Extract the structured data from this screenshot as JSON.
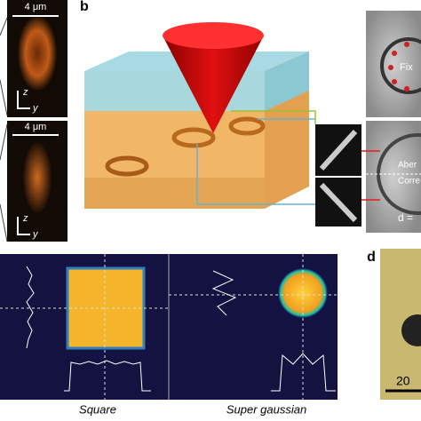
{
  "panel_a": {
    "scale_top": "4 μm",
    "scale_bottom": "4 μm",
    "axis_z_top": "z",
    "axis_y_top": "y",
    "axis_z_bottom": "z",
    "axis_y_bottom": "y"
  },
  "panel_b": {
    "label": "b",
    "fixed": "Fix",
    "aber": "Aber",
    "corre": "Corre",
    "d_eq": "d ="
  },
  "panel_c": {
    "square": "Square",
    "super_gaussian": "Super gaussian"
  },
  "panel_d": {
    "label": "d",
    "scale": "20"
  }
}
